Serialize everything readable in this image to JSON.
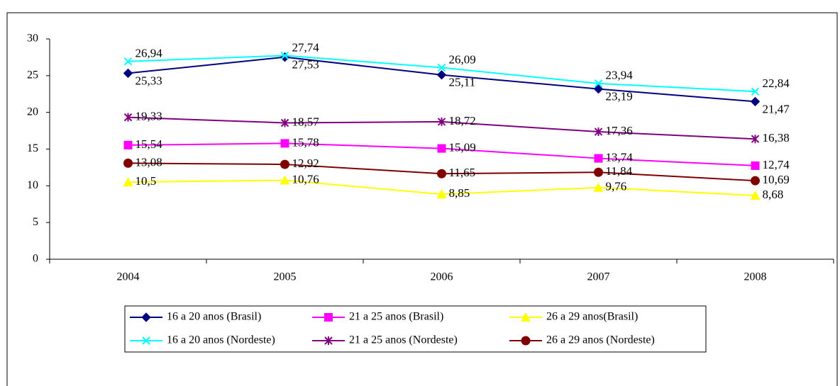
{
  "chart_data": {
    "type": "line",
    "categories": [
      "2004",
      "2005",
      "2006",
      "2007",
      "2008"
    ],
    "ylim": [
      0,
      30
    ],
    "yticks": [
      0,
      5,
      10,
      15,
      20,
      25,
      30
    ],
    "series": [
      {
        "name": "16 a 20 anos (Brasil)",
        "color": "#000080",
        "marker": "diamond",
        "values": [
          25.33,
          27.53,
          25.11,
          23.19,
          21.47
        ],
        "value_labels": [
          "25,33",
          "27,53",
          "25,11",
          "23,19",
          "21,47"
        ]
      },
      {
        "name": "21 a 25 anos (Brasil)",
        "color": "#ff00ff",
        "marker": "square",
        "values": [
          15.54,
          15.78,
          15.09,
          13.74,
          12.74
        ],
        "value_labels": [
          "15,54",
          "15,78",
          "15,09",
          "13,74",
          "12,74"
        ]
      },
      {
        "name": "26 a 29 anos(Brasil)",
        "color": "#ffff00",
        "marker": "triangle",
        "values": [
          10.5,
          10.76,
          8.85,
          9.76,
          8.68
        ],
        "value_labels": [
          "10,5",
          "10,76",
          "8,85",
          "9,76",
          "8,68"
        ]
      },
      {
        "name": "16 a 20 anos (Nordeste)",
        "color": "#00ffff",
        "marker": "x",
        "values": [
          26.94,
          27.74,
          26.09,
          23.94,
          22.84
        ],
        "value_labels": [
          "26,94",
          "27,74",
          "26,09",
          "23,94",
          "22,84"
        ]
      },
      {
        "name": "21 a 25 anos (Nordeste)",
        "color": "#800080",
        "marker": "star",
        "values": [
          19.33,
          18.57,
          18.72,
          17.36,
          16.38
        ],
        "value_labels": [
          "19,33",
          "18,57",
          "18,72",
          "17,36",
          "16,38"
        ]
      },
      {
        "name": "26 a 29 anos (Nordeste)",
        "color": "#800000",
        "marker": "circle",
        "values": [
          13.08,
          12.92,
          11.65,
          11.84,
          10.69
        ],
        "value_labels": [
          "13,08",
          "12,92",
          "11,65",
          "11,84",
          "10,69"
        ]
      }
    ]
  }
}
